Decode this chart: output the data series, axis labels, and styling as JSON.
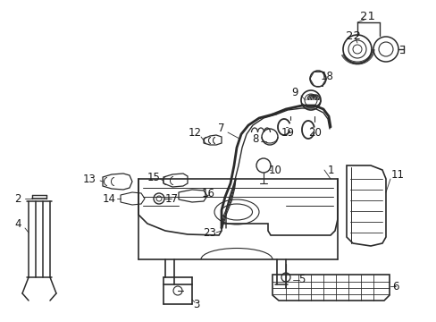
{
  "background_color": "#ffffff",
  "line_color": "#2a2a2a",
  "text_color": "#1a1a1a",
  "figsize": [
    4.89,
    3.6
  ],
  "dpi": 100,
  "label_fs": 8.5
}
